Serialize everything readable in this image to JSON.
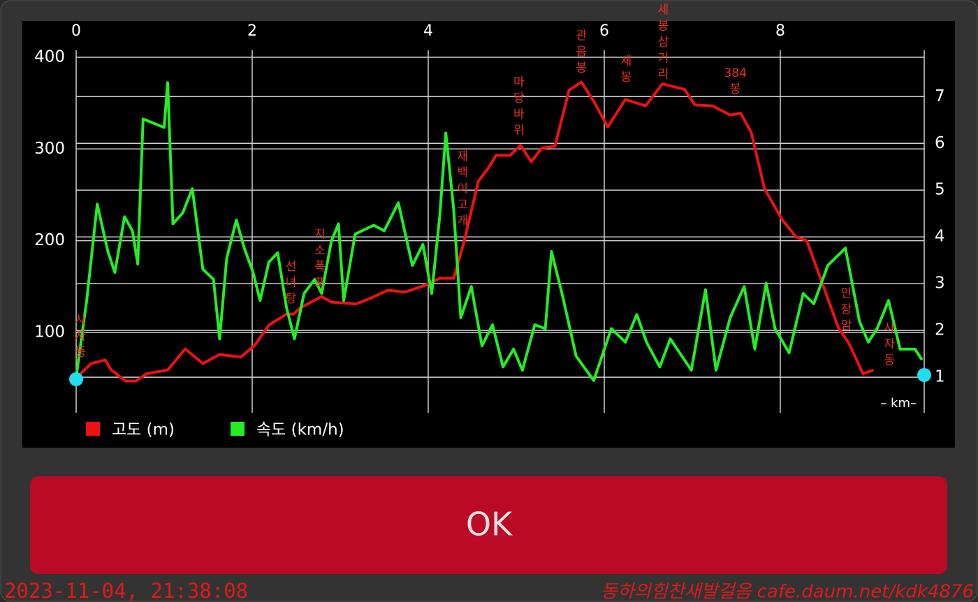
{
  "chart_data": {
    "type": "line",
    "x_label": "– km–",
    "xlim": [
      0,
      9.635
    ],
    "xticks": [
      0,
      2,
      4,
      6,
      8
    ],
    "ylim": [
      12.4,
      407.6
    ],
    "yticks": [
      100,
      200,
      300,
      400
    ],
    "y2lim": [
      0.24,
      7.99
    ],
    "y2ticks": [
      1,
      2,
      3,
      4,
      5,
      6,
      7
    ],
    "grid": true,
    "legend": "bottom-left",
    "series": [
      {
        "name": "고도 (m)",
        "color": "#ee1111",
        "axis": "y",
        "x": [
          0.05,
          0.17,
          0.33,
          0.4,
          0.56,
          0.68,
          0.8,
          1.04,
          1.24,
          1.44,
          1.63,
          1.87,
          2.03,
          2.19,
          2.39,
          2.47,
          2.55,
          2.79,
          2.9,
          3.18,
          3.34,
          3.54,
          3.74,
          3.98,
          4.13,
          4.29,
          4.41,
          4.57,
          4.69,
          4.77,
          4.93,
          5.05,
          5.17,
          5.29,
          5.44,
          5.6,
          5.74,
          5.88,
          6.04,
          6.24,
          6.47,
          6.66,
          6.91,
          7.03,
          7.23,
          7.43,
          7.55,
          7.67,
          7.82,
          8.02,
          8.18,
          8.3,
          8.46,
          8.66,
          8.78,
          8.94,
          9.06
        ],
        "values": [
          55,
          66,
          70,
          59,
          47,
          47,
          55,
          59,
          82,
          66,
          76,
          73,
          86,
          108,
          120,
          120,
          127,
          139,
          133,
          131,
          137,
          146,
          144,
          152,
          159,
          159,
          200,
          265,
          280,
          293,
          293,
          304,
          286,
          301,
          303,
          364,
          373,
          352,
          324,
          354,
          347,
          371,
          365,
          348,
          347,
          337,
          339,
          318,
          257,
          223,
          204,
          200,
          158,
          105,
          88,
          55,
          59
        ]
      },
      {
        "name": "속도 (km/h)",
        "color": "#22ee22",
        "axis": "y2",
        "x": [
          0,
          0.12,
          0.24,
          0.36,
          0.44,
          0.55,
          0.64,
          0.7,
          0.76,
          1.0,
          1.04,
          1.1,
          1.21,
          1.32,
          1.44,
          1.56,
          1.63,
          1.71,
          1.82,
          1.91,
          2.01,
          2.09,
          2.19,
          2.29,
          2.39,
          2.48,
          2.59,
          2.71,
          2.79,
          2.9,
          2.98,
          3.04,
          3.17,
          3.38,
          3.5,
          3.66,
          3.82,
          3.94,
          4.04,
          4.13,
          4.2,
          4.29,
          4.37,
          4.49,
          4.61,
          4.73,
          4.85,
          4.97,
          5.07,
          5.21,
          5.33,
          5.4,
          5.52,
          5.68,
          5.88,
          6.08,
          6.24,
          6.37,
          6.48,
          6.63,
          6.75,
          6.99,
          7.15,
          7.27,
          7.43,
          7.59,
          7.71,
          7.84,
          7.94,
          8.1,
          8.26,
          8.38,
          8.54,
          8.74,
          8.9,
          9.0,
          9.1,
          9.23,
          9.36,
          9.53,
          9.61
        ],
        "values": [
          1.0,
          2.64,
          4.7,
          3.69,
          3.24,
          4.43,
          4.13,
          3.42,
          6.52,
          6.34,
          7.3,
          4.28,
          4.51,
          5.03,
          3.31,
          3.09,
          1.82,
          3.54,
          4.36,
          3.76,
          3.24,
          2.64,
          3.46,
          3.66,
          2.49,
          1.82,
          2.79,
          3.09,
          2.79,
          3.91,
          4.28,
          2.64,
          4.06,
          4.25,
          4.13,
          4.73,
          3.39,
          3.84,
          2.79,
          4.43,
          6.22,
          4.58,
          2.27,
          2.94,
          1.67,
          2.12,
          1.22,
          1.6,
          1.15,
          2.12,
          2.04,
          3.69,
          2.79,
          1.45,
          0.93,
          2.04,
          1.75,
          2.34,
          1.75,
          1.22,
          1.82,
          1.15,
          2.87,
          1.15,
          2.27,
          2.94,
          1.6,
          3.01,
          2.04,
          1.52,
          2.79,
          2.57,
          3.39,
          3.76,
          2.19,
          1.75,
          2.04,
          2.64,
          1.6,
          1.6,
          1.37
        ]
      }
    ],
    "annotations": [
      {
        "text": "사자동",
        "x": 0.05,
        "y": 121
      },
      {
        "text": "선녀탕",
        "x": 2.44,
        "y": 179
      },
      {
        "text": "지소폭포",
        "x": 2.77,
        "y": 214
      },
      {
        "text": "재백이고개",
        "x": 4.39,
        "y": 299
      },
      {
        "text": "마당바위",
        "x": 5.03,
        "y": 380
      },
      {
        "text": "관음봉",
        "x": 5.74,
        "y": 431
      },
      {
        "text": "세봉",
        "x": 6.25,
        "y": 403
      },
      {
        "text": "세봉삼거리",
        "x": 6.67,
        "y": 459
      },
      {
        "text": "384봉",
        "x": 7.49,
        "y": 390
      },
      {
        "text": "인장암",
        "x": 8.75,
        "y": 150
      },
      {
        "text": "사자동",
        "x": 9.24,
        "y": 112
      }
    ]
  },
  "button": {
    "label": "OK"
  },
  "footer": {
    "timestamp": "2023-11-04, 21:38:08",
    "credit": "동하의힘찬새발걸음 cafe.daum.net/kdk4876"
  }
}
